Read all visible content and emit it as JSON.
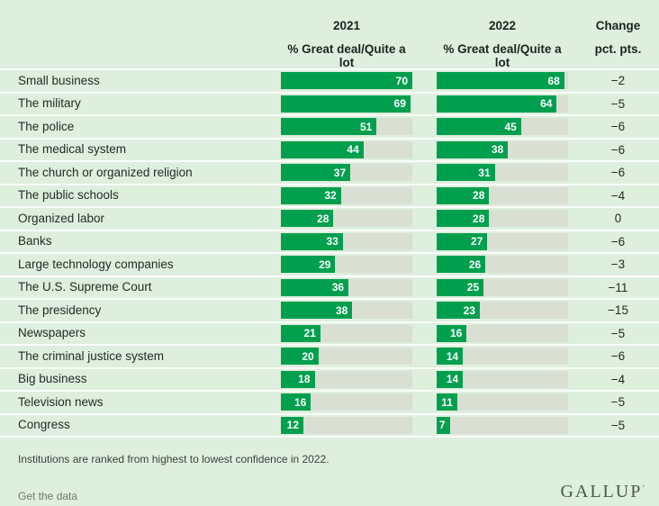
{
  "header": {
    "col2021": {
      "year": "2021",
      "subtitle": "% Great deal/Quite a lot"
    },
    "col2022": {
      "year": "2022",
      "subtitle": "% Great deal/Quite a lot"
    },
    "change": {
      "title": "Change",
      "subtitle": "pct. pts."
    }
  },
  "rows": [
    {
      "label": "Small business",
      "y2021": 70,
      "y2022": 68,
      "change": "−2"
    },
    {
      "label": "The military",
      "y2021": 69,
      "y2022": 64,
      "change": "−5"
    },
    {
      "label": "The police",
      "y2021": 51,
      "y2022": 45,
      "change": "−6"
    },
    {
      "label": "The medical system",
      "y2021": 44,
      "y2022": 38,
      "change": "−6"
    },
    {
      "label": "The church or organized religion",
      "y2021": 37,
      "y2022": 31,
      "change": "−6"
    },
    {
      "label": "The public schools",
      "y2021": 32,
      "y2022": 28,
      "change": "−4"
    },
    {
      "label": "Organized labor",
      "y2021": 28,
      "y2022": 28,
      "change": "0"
    },
    {
      "label": "Banks",
      "y2021": 33,
      "y2022": 27,
      "change": "−6"
    },
    {
      "label": "Large technology companies",
      "y2021": 29,
      "y2022": 26,
      "change": "−3"
    },
    {
      "label": "The U.S. Supreme Court",
      "y2021": 36,
      "y2022": 25,
      "change": "−11"
    },
    {
      "label": "The presidency",
      "y2021": 38,
      "y2022": 23,
      "change": "−15"
    },
    {
      "label": "Newspapers",
      "y2021": 21,
      "y2022": 16,
      "change": "−5"
    },
    {
      "label": "The criminal justice system",
      "y2021": 20,
      "y2022": 14,
      "change": "−6"
    },
    {
      "label": "Big business",
      "y2021": 18,
      "y2022": 14,
      "change": "−4"
    },
    {
      "label": "Television news",
      "y2021": 16,
      "y2022": 11,
      "change": "−5"
    },
    {
      "label": "Congress",
      "y2021": 12,
      "y2022": 7,
      "change": "−5"
    }
  ],
  "chart_data": {
    "type": "bar",
    "orientation": "horizontal",
    "categories": [
      "Small business",
      "The military",
      "The police",
      "The medical system",
      "The church or organized religion",
      "The public schools",
      "Organized labor",
      "Banks",
      "Large technology companies",
      "The U.S. Supreme Court",
      "The presidency",
      "Newspapers",
      "The criminal justice system",
      "Big business",
      "Television news",
      "Congress"
    ],
    "series": [
      {
        "name": "2021",
        "values": [
          70,
          69,
          51,
          44,
          37,
          32,
          28,
          33,
          29,
          36,
          38,
          21,
          20,
          18,
          16,
          12
        ]
      },
      {
        "name": "2022",
        "values": [
          68,
          64,
          45,
          38,
          31,
          28,
          28,
          27,
          26,
          25,
          23,
          16,
          14,
          14,
          11,
          7
        ]
      }
    ],
    "change_pct_pts": [
      -2,
      -5,
      -6,
      -6,
      -6,
      -4,
      0,
      -6,
      -3,
      -11,
      -15,
      -5,
      -6,
      -4,
      -5,
      -5
    ],
    "value_label": "% Great deal/Quite a lot",
    "xlim": [
      0,
      70
    ],
    "scale_max": 70,
    "sort": "ranked highest to lowest confidence in 2022",
    "colors": {
      "bar": "#009F4E",
      "track": "#D9DFD3",
      "background": "#DEEFDD"
    }
  },
  "footer": {
    "note": "Institutions are ranked from highest to lowest confidence in 2022.",
    "link_label": "Get the data",
    "brand": "GALLUP",
    "brand_mark": "’"
  }
}
